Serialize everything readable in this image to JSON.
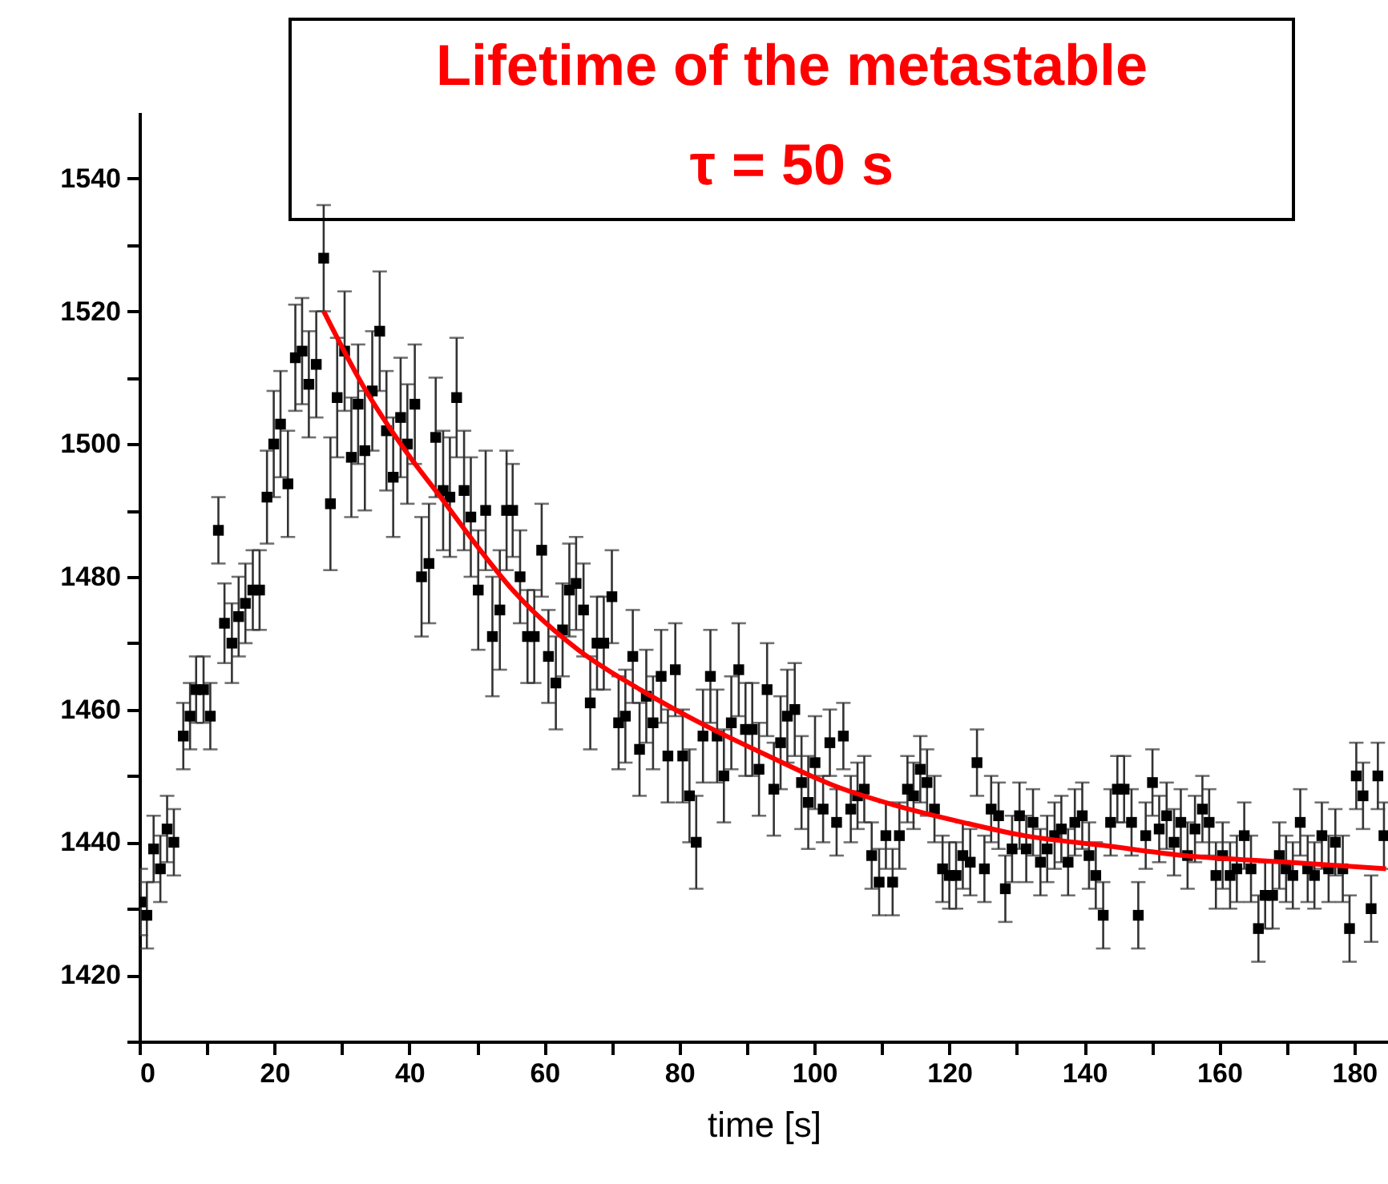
{
  "chart_data": {
    "type": "scatter",
    "xlabel": "time [s]",
    "annotations": [
      "Lifetime of the metastable",
      "τ = 50 s"
    ],
    "xlim": [
      0,
      185
    ],
    "ylim": [
      1410,
      1550
    ],
    "xticks": [
      0,
      {
        "value": 10,
        "label": null
      },
      20,
      {
        "value": 30,
        "label": null
      },
      40,
      {
        "value": 50,
        "label": null
      },
      60,
      {
        "value": 70,
        "label": null
      },
      80,
      {
        "value": 90,
        "label": null
      },
      100,
      {
        "value": 110,
        "label": null
      },
      120,
      {
        "value": 130,
        "label": null
      },
      140,
      {
        "value": 150,
        "label": null
      },
      160,
      {
        "value": 170,
        "label": null
      },
      180
    ],
    "yticks": [
      {
        "value": 1410,
        "label": null
      },
      1420,
      {
        "value": 1430,
        "label": null
      },
      1440,
      {
        "value": 1450,
        "label": null
      },
      1460,
      {
        "value": 1470,
        "label": null
      },
      1480,
      {
        "value": 1490,
        "label": null
      },
      1500,
      {
        "value": 1510,
        "label": null
      },
      1520,
      {
        "value": 1530,
        "label": null
      },
      1540
    ],
    "grid": false,
    "series": [
      {
        "color": "#000000",
        "marker": "square",
        "x": [
          0.2,
          1.1,
          2.1,
          3.1,
          4.1,
          5.1,
          6.5,
          7.5,
          8.4,
          9.5,
          10.5,
          11.7,
          12.6,
          13.7,
          14.7,
          15.7,
          16.8,
          17.8,
          18.9,
          19.9,
          20.9,
          22,
          23.1,
          24.1,
          25.1,
          26.2,
          27.3,
          28.3,
          29.3,
          30.4,
          31.4,
          32.4,
          33.4,
          34.5,
          35.6,
          36.6,
          37.6,
          38.7,
          39.7,
          40.8,
          41.8,
          42.9,
          43.9,
          45,
          46,
          47,
          48.1,
          49.1,
          50.2,
          51.3,
          52.3,
          53.4,
          54.4,
          55.3,
          56.4,
          57.5,
          58.5,
          59.6,
          60.6,
          61.7,
          62.7,
          63.7,
          64.7,
          65.8,
          66.8,
          67.8,
          68.8,
          70,
          71,
          72,
          73.1,
          74.1,
          75.1,
          76.1,
          77.3,
          78.3,
          79.4,
          80.5,
          81.5,
          82.5,
          83.5,
          84.6,
          85.6,
          86.6,
          87.7,
          88.8,
          89.8,
          90.8,
          91.8,
          93,
          94,
          95,
          96,
          97.1,
          98.1,
          99.1,
          100.1,
          101.3,
          102.3,
          103.3,
          104.3,
          105.4,
          106.4,
          107.4,
          108.5,
          109.6,
          110.6,
          111.6,
          112.6,
          113.8,
          114.7,
          115.7,
          116.7,
          117.8,
          119,
          120,
          121,
          122,
          123.1,
          124.1,
          125.2,
          126.2,
          127.3,
          128.3,
          129.3,
          130.4,
          131.4,
          132.4,
          133.5,
          134.5,
          135.6,
          136.6,
          137.6,
          138.6,
          139.7,
          140.7,
          141.7,
          142.8,
          143.9,
          144.9,
          145.9,
          147,
          148,
          149.1,
          150.1,
          151.1,
          152.2,
          153.3,
          154.3,
          155.3,
          156.4,
          157.5,
          158.5,
          159.5,
          160.5,
          161.6,
          162.6,
          163.7,
          164.7,
          165.8,
          166.8,
          167.9,
          168.9,
          169.9,
          170.9,
          172,
          173.1,
          174.1,
          175.2,
          176.2,
          177.2,
          178.3,
          179.3,
          180.3,
          181.3,
          182.5,
          183.5,
          184.4
        ],
        "values": [
          1431,
          1429,
          1439,
          1436,
          1442,
          1440,
          1456,
          1459,
          1463,
          1463,
          1459,
          1487,
          1473,
          1470,
          1474,
          1476,
          1478,
          1478,
          1492,
          1500,
          1503,
          1494,
          1513,
          1514,
          1509,
          1512,
          1528,
          1491,
          1507,
          1514,
          1498,
          1506,
          1499,
          1508,
          1517,
          1502,
          1495,
          1504,
          1500,
          1506,
          1480,
          1482,
          1501,
          1493,
          1492,
          1507,
          1493,
          1489,
          1478,
          1490,
          1471,
          1475,
          1490,
          1490,
          1480,
          1471,
          1471,
          1484,
          1468,
          1464,
          1472,
          1478,
          1479,
          1475,
          1461,
          1470,
          1470,
          1477,
          1458,
          1459,
          1468,
          1454,
          1462,
          1458,
          1465,
          1453,
          1466,
          1453,
          1447,
          1440,
          1456,
          1465,
          1456,
          1450,
          1458,
          1466,
          1457,
          1457,
          1451,
          1463,
          1448,
          1455,
          1459,
          1460,
          1449,
          1446,
          1452,
          1445,
          1455,
          1443,
          1456,
          1445,
          1447,
          1448,
          1438,
          1434,
          1441,
          1434,
          1441,
          1448,
          1447,
          1451,
          1449,
          1445,
          1436,
          1435,
          1435,
          1438,
          1437,
          1452,
          1436,
          1445,
          1444,
          1433,
          1439,
          1444,
          1439,
          1443,
          1437,
          1439,
          1441,
          1442,
          1437,
          1443,
          1444,
          1438,
          1435,
          1429,
          1443,
          1448,
          1448,
          1443,
          1429,
          1441,
          1449,
          1442,
          1444,
          1440,
          1443,
          1438,
          1442,
          1445,
          1443,
          1435,
          1438,
          1435,
          1436,
          1441,
          1436,
          1427,
          1432,
          1432,
          1438,
          1436,
          1435,
          1443,
          1436,
          1435,
          1441,
          1436,
          1440,
          1436,
          1427,
          1450,
          1447,
          1430,
          1450,
          1441
        ],
        "errors": [
          5,
          5,
          5,
          5,
          5,
          5,
          5,
          5,
          5,
          5,
          5,
          5,
          6,
          6,
          6,
          6,
          6,
          6,
          7,
          8,
          8,
          8,
          8,
          8,
          8,
          8,
          8,
          10,
          9,
          9,
          9,
          9,
          9,
          9,
          9,
          9,
          9,
          9,
          9,
          9,
          9,
          9,
          9,
          9,
          9,
          9,
          9,
          9,
          9,
          9,
          9,
          9,
          9,
          7,
          7,
          7,
          7,
          7,
          7,
          7,
          7,
          7,
          7,
          7,
          7,
          7,
          7,
          7,
          7,
          7,
          7,
          7,
          7,
          7,
          7,
          7,
          7,
          7,
          7,
          7,
          7,
          7,
          7,
          7,
          7,
          7,
          7,
          7,
          7,
          7,
          7,
          7,
          7,
          7,
          7,
          7,
          7,
          5,
          5,
          5,
          5,
          5,
          5,
          5,
          5,
          5,
          5,
          5,
          5,
          5,
          5,
          5,
          5,
          5,
          5,
          5,
          5,
          5,
          5,
          5,
          5,
          5,
          5,
          5,
          5,
          5,
          5,
          5,
          5,
          5,
          5,
          5,
          5,
          5,
          5,
          5,
          5,
          5,
          5,
          5,
          5,
          5,
          5,
          5,
          5,
          5,
          5,
          5,
          5,
          5,
          5,
          5,
          5,
          5,
          5,
          5,
          5,
          5,
          5,
          5,
          5,
          5,
          5,
          5,
          5,
          5,
          5,
          5,
          5,
          5,
          5,
          5,
          5,
          5,
          5,
          5,
          5,
          5
        ]
      },
      {
        "type": "line",
        "color": "#ff0000",
        "marker": "none",
        "line_style": "solid",
        "x": [
          27.3,
          33,
          39.4,
          45,
          50.5,
          55.3,
          65,
          74.2,
          84,
          93.2,
          103,
          112.2,
          122,
          131.1,
          143,
          154.8,
          170,
          184.7
        ],
        "values": [
          1520,
          1509,
          1499,
          1491.5,
          1484,
          1478,
          1469,
          1463,
          1457.5,
          1453,
          1448.5,
          1445.5,
          1443,
          1441,
          1439.5,
          1438,
          1437,
          1436
        ]
      }
    ]
  }
}
